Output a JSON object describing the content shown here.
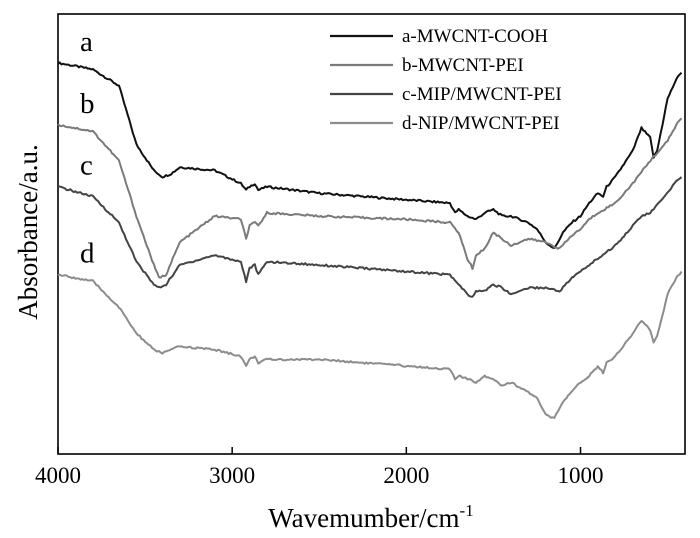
{
  "chart_data": {
    "type": "line",
    "xlabel": "Wavemumber/cm",
    "xlabel_superscript": "-1",
    "ylabel": "Absorbance/a.u.",
    "xlim": [
      4000,
      400
    ],
    "x_reversed": true,
    "y_ticks_shown": false,
    "xticks": [
      4000,
      3000,
      2000,
      1000
    ],
    "xtick_labels": [
      "4000",
      "3000",
      "2000",
      "1000"
    ],
    "legend_position": "top-right",
    "series": [
      {
        "name": "a-MWCNT-COOH",
        "label": "a",
        "color": "#111111",
        "points": [
          [
            4000,
            0.85
          ],
          [
            3800,
            0.83
          ],
          [
            3650,
            0.78
          ],
          [
            3550,
            0.6
          ],
          [
            3450,
            0.52
          ],
          [
            3400,
            0.5
          ],
          [
            3350,
            0.51
          ],
          [
            3300,
            0.53
          ],
          [
            3100,
            0.52
          ],
          [
            2950,
            0.48
          ],
          [
            2920,
            0.46
          ],
          [
            2900,
            0.47
          ],
          [
            2870,
            0.48
          ],
          [
            2850,
            0.46
          ],
          [
            2800,
            0.47
          ],
          [
            2500,
            0.45
          ],
          [
            2000,
            0.43
          ],
          [
            1750,
            0.42
          ],
          [
            1720,
            0.39
          ],
          [
            1700,
            0.4
          ],
          [
            1650,
            0.38
          ],
          [
            1600,
            0.37
          ],
          [
            1550,
            0.39
          ],
          [
            1500,
            0.4
          ],
          [
            1450,
            0.38
          ],
          [
            1400,
            0.38
          ],
          [
            1300,
            0.36
          ],
          [
            1250,
            0.34
          ],
          [
            1200,
            0.3
          ],
          [
            1150,
            0.28
          ],
          [
            1100,
            0.33
          ],
          [
            1050,
            0.36
          ],
          [
            1000,
            0.38
          ],
          [
            950,
            0.42
          ],
          [
            900,
            0.45
          ],
          [
            870,
            0.44
          ],
          [
            850,
            0.47
          ],
          [
            800,
            0.5
          ],
          [
            700,
            0.58
          ],
          [
            650,
            0.65
          ],
          [
            600,
            0.62
          ],
          [
            580,
            0.56
          ],
          [
            560,
            0.58
          ],
          [
            500,
            0.74
          ],
          [
            450,
            0.8
          ],
          [
            420,
            0.82
          ]
        ]
      },
      {
        "name": "b-MWCNT-PEI",
        "label": "b",
        "color": "#7a7a7a",
        "points": [
          [
            4000,
            0.66
          ],
          [
            3800,
            0.64
          ],
          [
            3650,
            0.55
          ],
          [
            3550,
            0.38
          ],
          [
            3450,
            0.23
          ],
          [
            3420,
            0.19
          ],
          [
            3380,
            0.2
          ],
          [
            3300,
            0.3
          ],
          [
            3100,
            0.38
          ],
          [
            2950,
            0.37
          ],
          [
            2920,
            0.31
          ],
          [
            2900,
            0.35
          ],
          [
            2870,
            0.36
          ],
          [
            2850,
            0.35
          ],
          [
            2800,
            0.39
          ],
          [
            2500,
            0.38
          ],
          [
            2000,
            0.37
          ],
          [
            1750,
            0.36
          ],
          [
            1700,
            0.33
          ],
          [
            1650,
            0.25
          ],
          [
            1620,
            0.22
          ],
          [
            1600,
            0.26
          ],
          [
            1550,
            0.28
          ],
          [
            1500,
            0.33
          ],
          [
            1450,
            0.31
          ],
          [
            1400,
            0.29
          ],
          [
            1300,
            0.31
          ],
          [
            1200,
            0.3
          ],
          [
            1120,
            0.28
          ],
          [
            1050,
            0.32
          ],
          [
            1000,
            0.34
          ],
          [
            950,
            0.37
          ],
          [
            900,
            0.39
          ],
          [
            800,
            0.42
          ],
          [
            700,
            0.48
          ],
          [
            600,
            0.55
          ],
          [
            500,
            0.61
          ],
          [
            450,
            0.66
          ],
          [
            420,
            0.68
          ]
        ]
      },
      {
        "name": "c-MIP/MWCNT-PEI",
        "label": "c",
        "color": "#444444",
        "points": [
          [
            4000,
            0.47
          ],
          [
            3800,
            0.44
          ],
          [
            3650,
            0.36
          ],
          [
            3550,
            0.24
          ],
          [
            3450,
            0.17
          ],
          [
            3420,
            0.16
          ],
          [
            3380,
            0.17
          ],
          [
            3300,
            0.23
          ],
          [
            3100,
            0.26
          ],
          [
            2950,
            0.24
          ],
          [
            2920,
            0.18
          ],
          [
            2900,
            0.22
          ],
          [
            2870,
            0.23
          ],
          [
            2850,
            0.2
          ],
          [
            2800,
            0.24
          ],
          [
            2500,
            0.23
          ],
          [
            2000,
            0.21
          ],
          [
            1750,
            0.2
          ],
          [
            1700,
            0.17
          ],
          [
            1650,
            0.14
          ],
          [
            1620,
            0.13
          ],
          [
            1600,
            0.15
          ],
          [
            1550,
            0.15
          ],
          [
            1500,
            0.17
          ],
          [
            1450,
            0.16
          ],
          [
            1400,
            0.14
          ],
          [
            1300,
            0.16
          ],
          [
            1200,
            0.16
          ],
          [
            1120,
            0.15
          ],
          [
            1050,
            0.19
          ],
          [
            1000,
            0.21
          ],
          [
            950,
            0.23
          ],
          [
            900,
            0.25
          ],
          [
            800,
            0.29
          ],
          [
            700,
            0.35
          ],
          [
            650,
            0.38
          ],
          [
            600,
            0.39
          ],
          [
            500,
            0.45
          ],
          [
            450,
            0.49
          ],
          [
            420,
            0.5
          ]
        ]
      },
      {
        "name": "d-NIP/MWCNT-PEI",
        "label": "d",
        "color": "#8c8c8c",
        "points": [
          [
            4000,
            0.2
          ],
          [
            3800,
            0.18
          ],
          [
            3650,
            0.1
          ],
          [
            3550,
            0.02
          ],
          [
            3450,
            -0.03
          ],
          [
            3400,
            -0.04
          ],
          [
            3350,
            -0.03
          ],
          [
            3300,
            -0.02
          ],
          [
            3100,
            -0.03
          ],
          [
            2950,
            -0.05
          ],
          [
            2920,
            -0.08
          ],
          [
            2900,
            -0.06
          ],
          [
            2870,
            -0.05
          ],
          [
            2850,
            -0.07
          ],
          [
            2800,
            -0.06
          ],
          [
            2500,
            -0.06
          ],
          [
            2000,
            -0.08
          ],
          [
            1750,
            -0.09
          ],
          [
            1720,
            -0.12
          ],
          [
            1700,
            -0.11
          ],
          [
            1650,
            -0.12
          ],
          [
            1600,
            -0.13
          ],
          [
            1550,
            -0.11
          ],
          [
            1500,
            -0.12
          ],
          [
            1450,
            -0.14
          ],
          [
            1400,
            -0.13
          ],
          [
            1300,
            -0.16
          ],
          [
            1250,
            -0.18
          ],
          [
            1200,
            -0.23
          ],
          [
            1150,
            -0.24
          ],
          [
            1100,
            -0.19
          ],
          [
            1050,
            -0.16
          ],
          [
            1000,
            -0.13
          ],
          [
            950,
            -0.11
          ],
          [
            900,
            -0.08
          ],
          [
            870,
            -0.1
          ],
          [
            850,
            -0.07
          ],
          [
            800,
            -0.05
          ],
          [
            700,
            0.02
          ],
          [
            650,
            0.06
          ],
          [
            600,
            0.03
          ],
          [
            580,
            -0.01
          ],
          [
            560,
            0.01
          ],
          [
            500,
            0.14
          ],
          [
            450,
            0.19
          ],
          [
            420,
            0.21
          ]
        ]
      }
    ]
  }
}
